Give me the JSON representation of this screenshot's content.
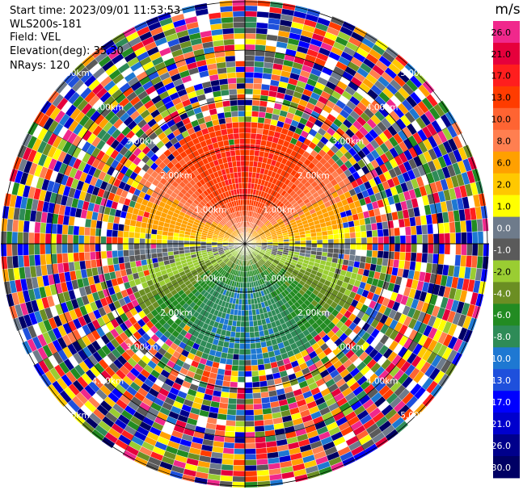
{
  "header": {
    "start_time_label": "Start time: 2023/09/01 11:53:53",
    "instrument": "WLS200s-181",
    "field_label": "Field: VEL",
    "elevation_label": "Elevation(deg): 35.30",
    "nrays_label": "NRays: 120"
  },
  "chart_data": {
    "type": "heatmap",
    "projection": "polar-ppi",
    "field": "VEL",
    "units": "m/s",
    "nrays": 120,
    "elevation_deg": 35.3,
    "range_ring_labels": [
      "1.00km",
      "2.00km",
      "3.00km",
      "4.00km",
      "5.00km"
    ],
    "range_rings_km": [
      1,
      2,
      3,
      4,
      5
    ],
    "max_range_km": 5.6,
    "grid": true,
    "colorbar": {
      "title": "m/s",
      "tick_labels": [
        "26.0",
        "21.0",
        "17.0",
        "13.0",
        "10.0",
        "8.0",
        "6.0",
        "2.0",
        "1.0",
        "0.0",
        "-1.0",
        "-2.0",
        "-4.0",
        "-6.0",
        "-8.0",
        "-10.0",
        "-13.0",
        "-17.0",
        "-21.0",
        "-26.0",
        "-30.0"
      ],
      "colors": [
        "#f0288c",
        "#e6003c",
        "#ff1e1e",
        "#ff3c00",
        "#ff6432",
        "#ff7f50",
        "#ffa000",
        "#ffc800",
        "#ffff00",
        "#6e7b8b",
        "#5a5a5a",
        "#9acd32",
        "#6b8e23",
        "#228b22",
        "#2e8b57",
        "#1e78d2",
        "#1e50dc",
        "#0000ff",
        "#0000cd",
        "#00008b",
        "#000064"
      ]
    },
    "field_pattern": {
      "approaching_direction_deg": 0,
      "peak_toward_north": 13.0,
      "peak_toward_south": -10.0,
      "clean_range_km": 2.1,
      "noise_begins_km": 2.3
    }
  }
}
